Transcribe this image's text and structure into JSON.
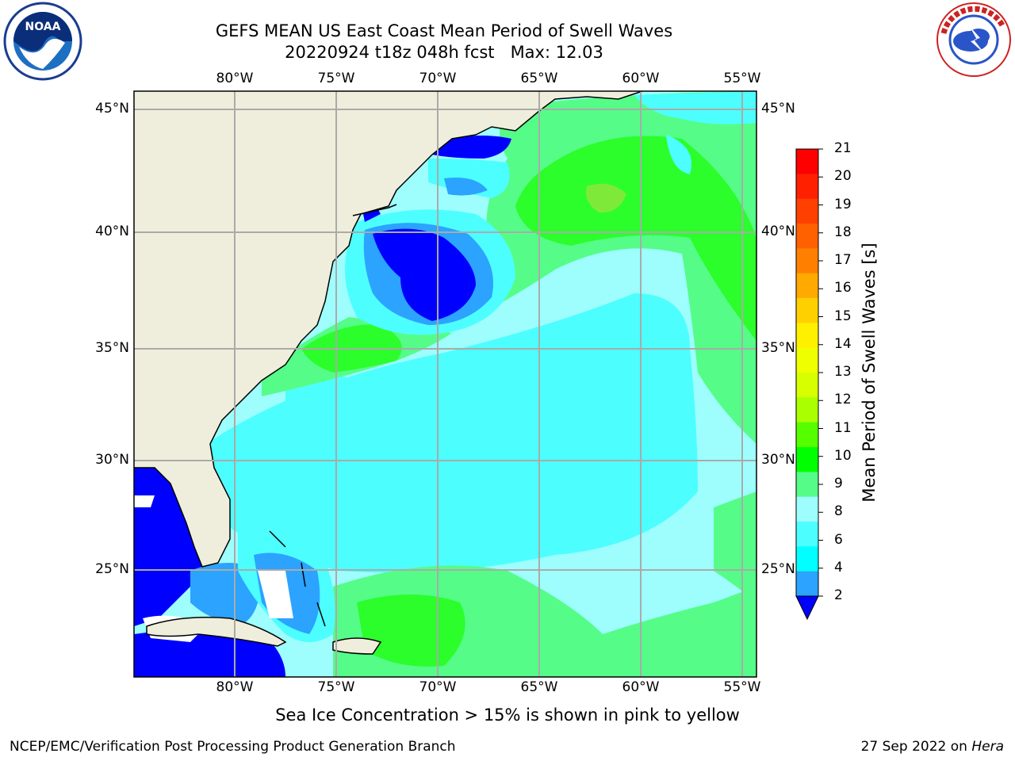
{
  "header": {
    "title_line1": "GEFS MEAN US East Coast Mean Period of Swell Waves",
    "title_line2": "20220924 t18z 048h fcst   Max: 12.03"
  },
  "logos": {
    "left": "noaa-logo",
    "right": "nws-logo"
  },
  "map": {
    "type": "filled-contour-map",
    "region": "US East Coast / Western North Atlantic",
    "lon_labels": [
      "80°W",
      "75°W",
      "70°W",
      "65°W",
      "60°W",
      "55°W"
    ],
    "lat_labels": [
      "45°N",
      "40°N",
      "35°N",
      "30°N",
      "25°N"
    ],
    "grid": true,
    "colors": {
      "land": "#efeedc",
      "water_low": "#0000ff",
      "water_mid": "#2ba3ff",
      "cyan": "#4dfeff",
      "light_cyan": "#9efefe",
      "light_green": "#55fd88",
      "green": "#2bfe2b",
      "yellow_green": "#7fe93a",
      "gridline": "#aaaaaa"
    }
  },
  "colorbar": {
    "label": "Mean Period of Swell Waves [s]",
    "ticks": [
      "21",
      "20",
      "19",
      "18",
      "17",
      "16",
      "15",
      "14",
      "13",
      "12",
      "11",
      "10",
      "9",
      "8",
      "6",
      "4",
      "2"
    ],
    "colors_top_to_bottom": [
      "#ff0000",
      "#ff2000",
      "#ff4000",
      "#ff6000",
      "#ff8000",
      "#ffaa00",
      "#ffd000",
      "#fff000",
      "#f0ff00",
      "#d8ff00",
      "#aaff00",
      "#55ff00",
      "#00ff00",
      "#55fd88",
      "#9efefe",
      "#4dfeff",
      "#00ffff",
      "#2ba3ff"
    ],
    "under_color": "#0000ff"
  },
  "footer": {
    "note": "Sea Ice Concentration > 15% is shown in pink to yellow",
    "credit_left": "NCEP/EMC/Verification Post Processing Product Generation Branch",
    "credit_date": "27 Sep 2022 on",
    "credit_host": "Hera"
  }
}
